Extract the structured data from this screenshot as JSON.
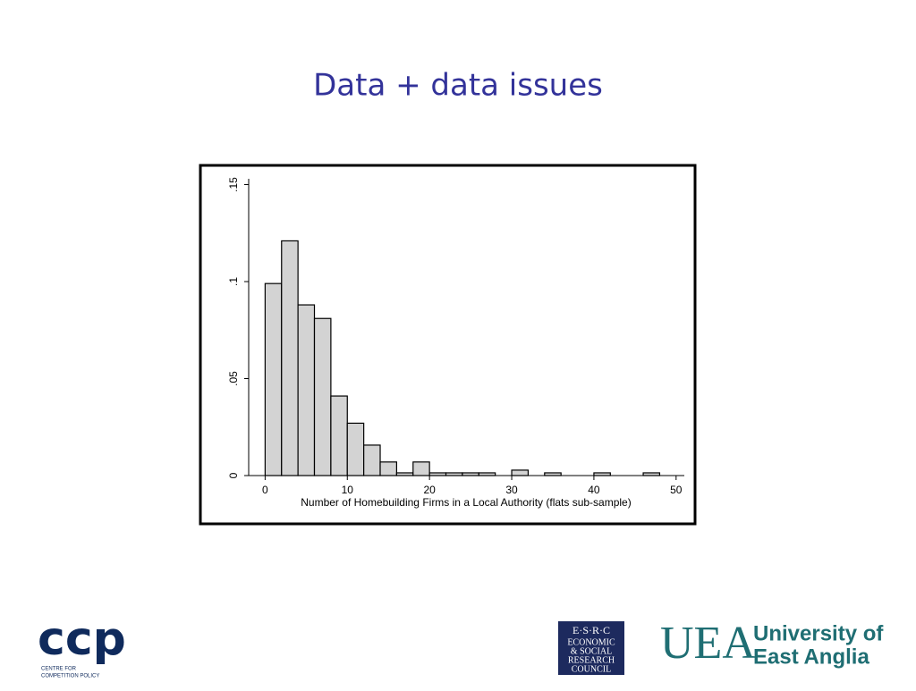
{
  "chart_data": {
    "type": "histogram",
    "title": "Data + data issues",
    "xlabel": "Number of Homebuilding Firms in a Local Authority (flats sub-sample)",
    "bins": [
      0,
      2,
      4,
      6,
      8,
      10,
      12,
      14,
      16,
      18,
      20,
      22,
      24,
      26,
      28,
      30,
      32,
      34,
      36,
      38,
      40,
      42,
      44,
      46,
      48
    ],
    "values": [
      0.099,
      0.121,
      0.088,
      0.081,
      0.041,
      0.027,
      0.0157,
      0.007,
      0.0014,
      0.007,
      0.0014,
      0.0014,
      0.0014,
      0.0014,
      0,
      0.0028,
      0,
      0.0014,
      0,
      0,
      0.0014,
      0,
      0,
      0.0014
    ],
    "color": "#d3d3d3",
    "xlim": [
      -2,
      51
    ],
    "xticks": [
      0,
      10,
      20,
      30,
      40,
      50
    ],
    "ylim": [
      0,
      0.153
    ],
    "yticks": [
      0,
      {
        "value": 0.05,
        "label": ".05"
      },
      {
        "value": 0.1,
        "label": ".1"
      },
      {
        "value": 0.15,
        "label": ".15"
      }
    ]
  },
  "logos": {
    "ccp": "ccp",
    "ccp_sub": [
      "CENTRE FOR",
      "COMPETITION POLICY"
    ],
    "esrc": [
      "E·S·R·C",
      "ECONOMIC",
      "& SOCIAL",
      "RESEARCH",
      "COUNCIL"
    ],
    "uea_mark": "UEA",
    "uea_text": [
      "University of",
      "East Anglia"
    ]
  }
}
